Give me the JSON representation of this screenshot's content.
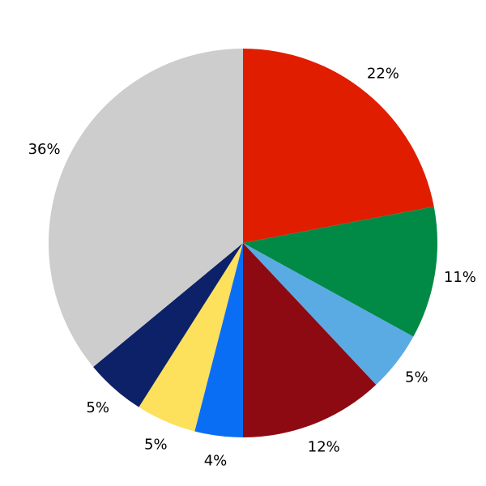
{
  "chart_data": {
    "type": "pie",
    "title": "",
    "slices": [
      {
        "label": "22%",
        "value": 22,
        "color": "#e11d00",
        "name": "red"
      },
      {
        "label": "11%",
        "value": 11,
        "color": "#008a45",
        "name": "green"
      },
      {
        "label": "5%",
        "value": 5,
        "color": "#5aabe3",
        "name": "light-blue"
      },
      {
        "label": "12%",
        "value": 12,
        "color": "#8e0a12",
        "name": "dark-red"
      },
      {
        "label": "4%",
        "value": 4,
        "color": "#0a6ef5",
        "name": "bright-blue"
      },
      {
        "label": "5%",
        "value": 5,
        "color": "#fde05c",
        "name": "yellow"
      },
      {
        "label": "5%",
        "value": 5,
        "color": "#0d2168",
        "name": "navy"
      },
      {
        "label": "36%",
        "value": 36,
        "color": "#cdcdcd",
        "name": "gray"
      }
    ],
    "start_angle_deg": 90,
    "direction": "clockwise",
    "legend": "none",
    "background": "#ffffff",
    "label_color": "#000000",
    "label_distance_ratio": 1.13
  }
}
